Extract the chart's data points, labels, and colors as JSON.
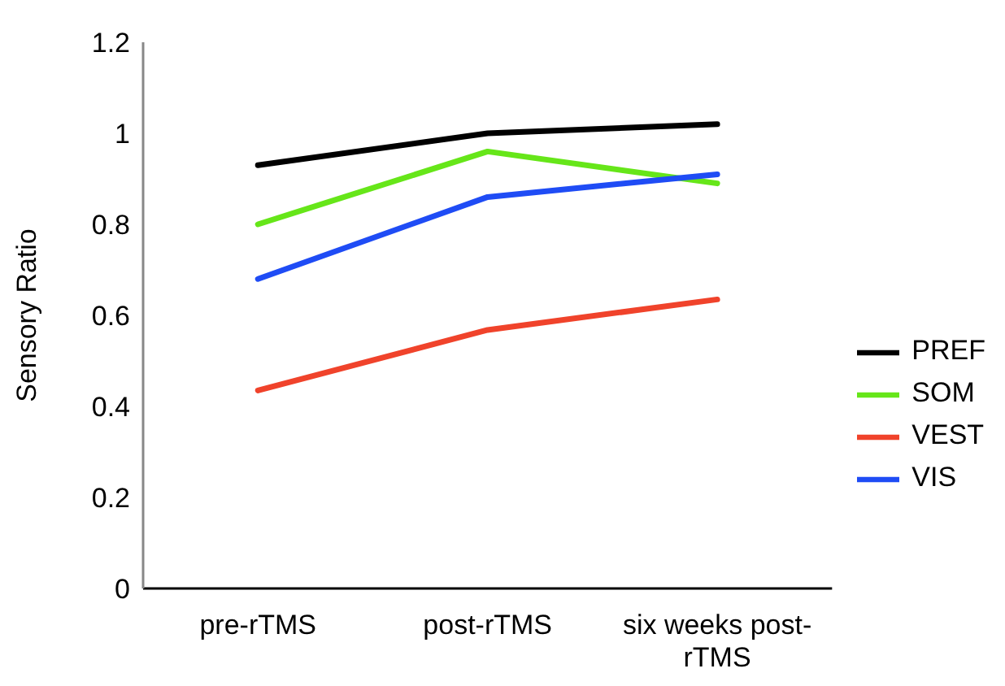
{
  "chart_data": {
    "type": "line",
    "ylabel": "Sensory Ratio",
    "categories": [
      "pre-rTMS",
      "post-rTMS",
      "six weeks post-rTMS"
    ],
    "series": [
      {
        "name": "SOM",
        "color": "#66e619",
        "values": [
          0.8,
          0.96,
          0.89
        ]
      },
      {
        "name": "VIS",
        "color": "#1f4cf5",
        "values": [
          0.68,
          0.86,
          0.91
        ]
      },
      {
        "name": "VEST",
        "color": "#f0432b",
        "values": [
          0.435,
          0.568,
          0.635
        ]
      },
      {
        "name": "PREF",
        "color": "#000000",
        "values": [
          0.93,
          1.0,
          1.02
        ]
      }
    ],
    "ylim": [
      0,
      1.2
    ],
    "yticks": [
      0,
      0.2,
      0.4,
      0.6,
      0.8,
      1,
      1.2
    ],
    "grid": false,
    "legend": "right",
    "marker": "none",
    "line_style": "solid"
  }
}
